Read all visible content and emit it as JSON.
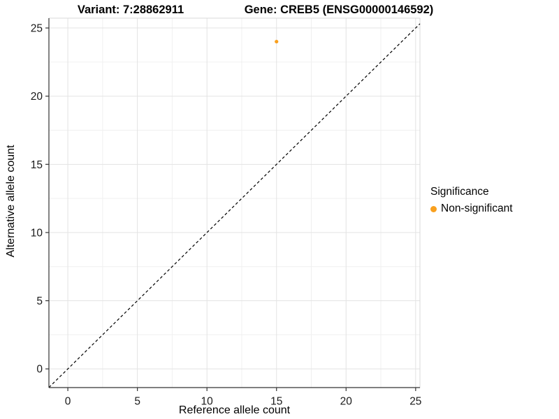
{
  "titles": {
    "left": "Variant: 7:28862911",
    "right": "Gene: CREB5 (ENSG00000146592)"
  },
  "legend": {
    "title": "Significance",
    "items": [
      {
        "label": "Non-significant",
        "color": "#F9A01E"
      }
    ]
  },
  "chart_data": {
    "type": "scatter",
    "title_left": "Variant: 7:28862911",
    "title_right": "Gene: CREB5 (ENSG00000146592)",
    "xlabel": "Reference allele count",
    "ylabel": "Alternative allele count",
    "xlim": [
      -1.36,
      25.31
    ],
    "ylim": [
      -1.37,
      25.72
    ],
    "x_ticks": [
      0,
      5,
      10,
      15,
      20,
      25
    ],
    "y_ticks": [
      0,
      5,
      10,
      15,
      20,
      25
    ],
    "x_minor_ticks": [
      2.5,
      7.5,
      12.5,
      17.5,
      22.5
    ],
    "y_minor_ticks": [
      2.5,
      7.5,
      12.5,
      17.5,
      22.5
    ],
    "grid": true,
    "legend_position": "right",
    "legend_title": "Significance",
    "series": [
      {
        "name": "Non-significant",
        "color": "#F9A01E",
        "point_radius": 2.6,
        "points": [
          {
            "x": 15,
            "y": 24
          }
        ]
      }
    ],
    "reference_line": {
      "type": "diagonal",
      "slope": 1,
      "intercept": 0,
      "style": "dashed",
      "color": "#000000"
    },
    "colors": {
      "major_grid": "#e3e3e3",
      "minor_grid": "#f0f0f0",
      "panel_border": "#d9d9d9",
      "axis_line": "#333333",
      "tick_label": "#1a1a1a"
    }
  }
}
